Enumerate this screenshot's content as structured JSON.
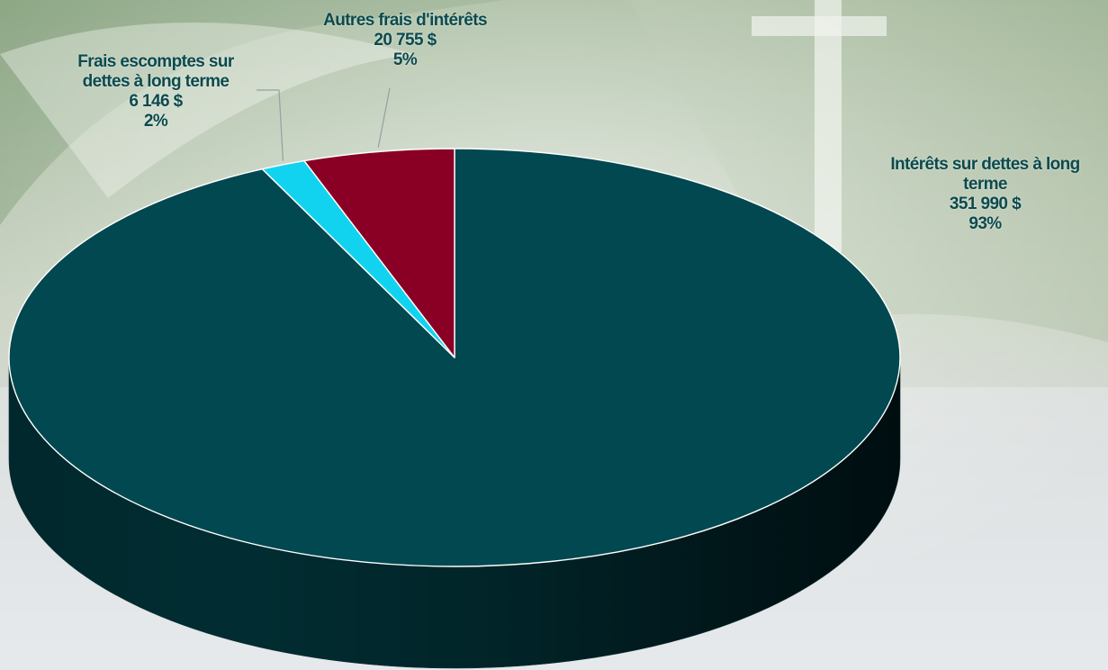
{
  "chart_data": {
    "type": "pie",
    "title": "",
    "slices": [
      {
        "name": "Intérêts sur dettes à long terme",
        "name_lines": [
          "Intérêts sur dettes à long",
          "terme"
        ],
        "value": 351990,
        "value_label": "351 990 $",
        "percent_label": "93%",
        "color": "#024850"
      },
      {
        "name": "Frais escomptes sur dettes à long terme",
        "name_lines": [
          "Frais escomptes sur",
          "dettes à long terme"
        ],
        "value": 6146,
        "value_label": "6 146 $",
        "percent_label": "2%",
        "color": "#12d3ef"
      },
      {
        "name": "Autres frais d'intérêts",
        "name_lines": [
          "Autres frais d'intérêts"
        ],
        "value": 20755,
        "value_label": "20 755 $",
        "percent_label": "5%",
        "color": "#8a0025"
      }
    ],
    "legend": "none",
    "label_color": "#0b4a4e"
  }
}
